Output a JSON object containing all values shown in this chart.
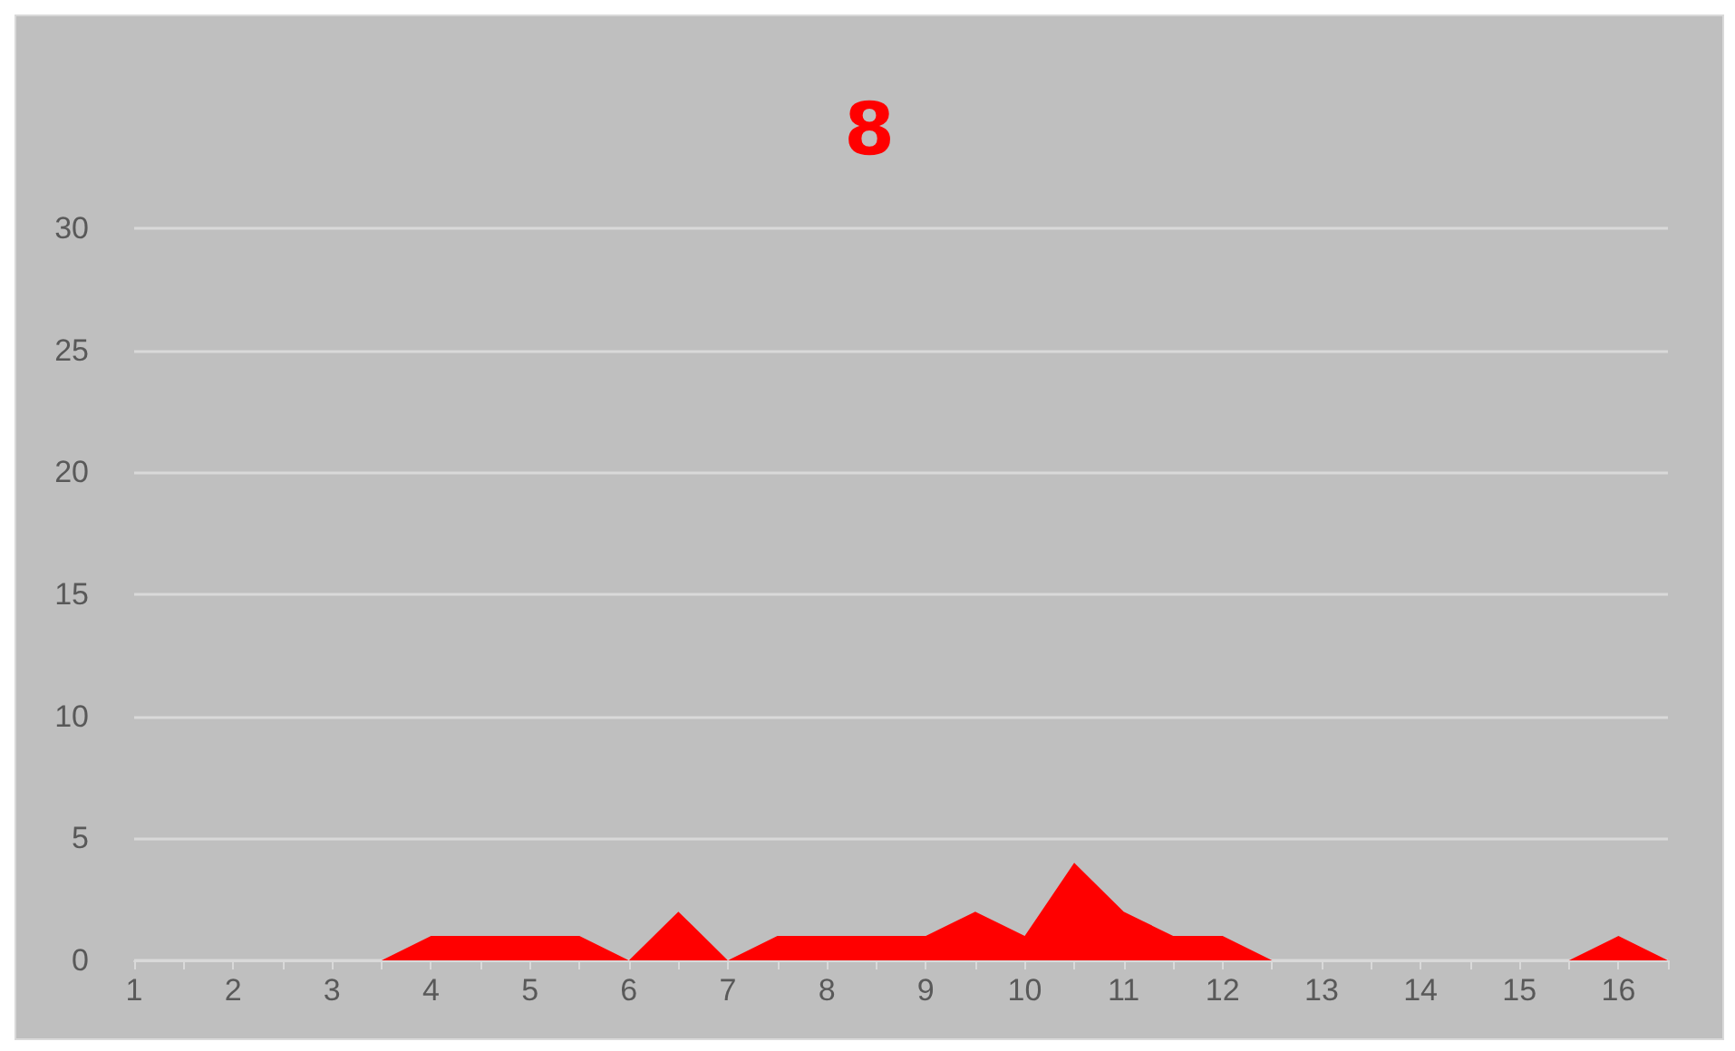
{
  "chart_data": {
    "type": "area",
    "title": "8",
    "x": [
      1,
      1.5,
      2,
      2.5,
      3,
      3.5,
      4,
      4.5,
      5,
      5.5,
      6,
      6.5,
      7,
      7.5,
      8,
      8.5,
      9,
      9.5,
      10,
      10.5,
      11,
      11.5,
      12,
      12.5,
      13,
      13.5,
      14,
      14.5,
      15,
      15.5,
      16,
      16.5
    ],
    "series": [
      {
        "color": "#ff0000",
        "values": [
          0,
          0,
          0,
          0,
          0,
          0,
          1,
          1,
          1,
          1,
          0,
          2,
          0,
          1,
          1,
          1,
          1,
          2,
          1,
          4,
          2,
          1,
          1,
          0,
          0,
          0,
          0,
          0,
          0,
          0,
          1,
          0
        ]
      }
    ],
    "xlim": [
      1,
      16.5
    ],
    "xticks": [
      1,
      {
        "value": 1.5,
        "label": null
      },
      2,
      {
        "value": 2.5,
        "label": null
      },
      3,
      {
        "value": 3.5,
        "label": null
      },
      4,
      {
        "value": 4.5,
        "label": null
      },
      5,
      {
        "value": 5.5,
        "label": null
      },
      6,
      {
        "value": 6.5,
        "label": null
      },
      7,
      {
        "value": 7.5,
        "label": null
      },
      8,
      {
        "value": 8.5,
        "label": null
      },
      9,
      {
        "value": 9.5,
        "label": null
      },
      10,
      {
        "value": 10.5,
        "label": null
      },
      11,
      {
        "value": 11.5,
        "label": null
      },
      12,
      {
        "value": 12.5,
        "label": null
      },
      13,
      {
        "value": 13.5,
        "label": null
      },
      14,
      {
        "value": 14.5,
        "label": null
      },
      15,
      {
        "value": 15.5,
        "label": null
      },
      16,
      {
        "value": 16.5,
        "label": null
      }
    ],
    "ylim": [
      0,
      30
    ],
    "yticks": [
      0,
      5,
      10,
      15,
      20,
      25,
      30
    ],
    "grid": "y"
  }
}
